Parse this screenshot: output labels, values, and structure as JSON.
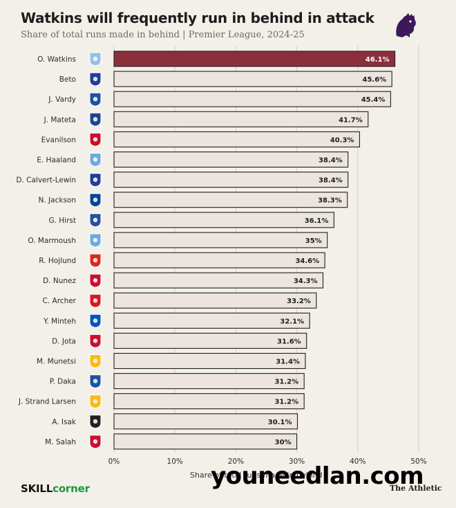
{
  "header": {
    "title": "Watkins will frequently run in behind in attack",
    "subtitle": "Share of total runs made in behind | Premier League, 2024-25"
  },
  "footer": {
    "brand_skill": "SKILL",
    "brand_corner": "corner",
    "publisher": "The Athletic",
    "watermark": "youneedlan.com"
  },
  "colors": {
    "highlight_bar": "#8c2f3d",
    "bar": "#ece4df",
    "bar_border": "#1f1f1f",
    "background": "#f3efe9",
    "brand_green": "#1a9a3a"
  },
  "chart_data": {
    "type": "bar",
    "orientation": "horizontal",
    "title": "Watkins will frequently run in behind in attack",
    "subtitle": "Share of total runs made in behind | Premier League, 2024-25",
    "xlabel": "Share of total runs made in behind",
    "xlim": [
      0,
      50
    ],
    "xticks": [
      "0%",
      "10%",
      "20%",
      "30%",
      "40%",
      "50%"
    ],
    "xtick_values": [
      0,
      10,
      20,
      30,
      40,
      50
    ],
    "grid": "vertical",
    "categories": [
      "O. Watkins",
      "Beto",
      "J. Vardy",
      "J. Mateta",
      "Evanilson",
      "E. Haaland",
      "D. Calvert-Lewin",
      "N. Jackson",
      "G. Hirst",
      "O. Marmoush",
      "R. Hojlund",
      "D. Nunez",
      "C. Archer",
      "Y. Minteh",
      "D. Jota",
      "M. Munetsi",
      "P. Daka",
      "J. Strand Larsen",
      "A. Isak",
      "M. Salah"
    ],
    "values": [
      46.1,
      45.6,
      45.4,
      41.7,
      40.3,
      38.4,
      38.4,
      38.3,
      36.1,
      35,
      34.6,
      34.3,
      33.2,
      32.1,
      31.6,
      31.4,
      31.2,
      31.2,
      30.1,
      30
    ],
    "value_labels": [
      "46.1%",
      "45.6%",
      "45.4%",
      "41.7%",
      "40.3%",
      "38.4%",
      "38.4%",
      "38.3%",
      "36.1%",
      "35%",
      "34.6%",
      "34.3%",
      "33.2%",
      "32.1%",
      "31.6%",
      "31.4%",
      "31.2%",
      "31.2%",
      "30.1%",
      "30%"
    ],
    "highlight": "O. Watkins",
    "club_badges": [
      "aston-villa-icon",
      "everton-icon",
      "leicester-icon",
      "crystal-palace-icon",
      "bournemouth-icon",
      "man-city-icon",
      "everton-icon",
      "chelsea-icon",
      "ipswich-icon",
      "man-city-icon",
      "man-utd-icon",
      "liverpool-icon",
      "southampton-icon",
      "brighton-icon",
      "liverpool-icon",
      "wolves-icon",
      "leicester-icon",
      "wolves-icon",
      "newcastle-icon",
      "liverpool-icon"
    ],
    "badge_colors": [
      "#95bfe5",
      "#1f3f99",
      "#1b53a5",
      "#1b458f",
      "#c8102e",
      "#6cabdd",
      "#1f3f99",
      "#034694",
      "#2a4f9e",
      "#6cabdd",
      "#da291c",
      "#c8102e",
      "#d71920",
      "#0057b8",
      "#c8102e",
      "#fdb913",
      "#1b53a5",
      "#fdb913",
      "#241f20",
      "#c8102e"
    ]
  }
}
